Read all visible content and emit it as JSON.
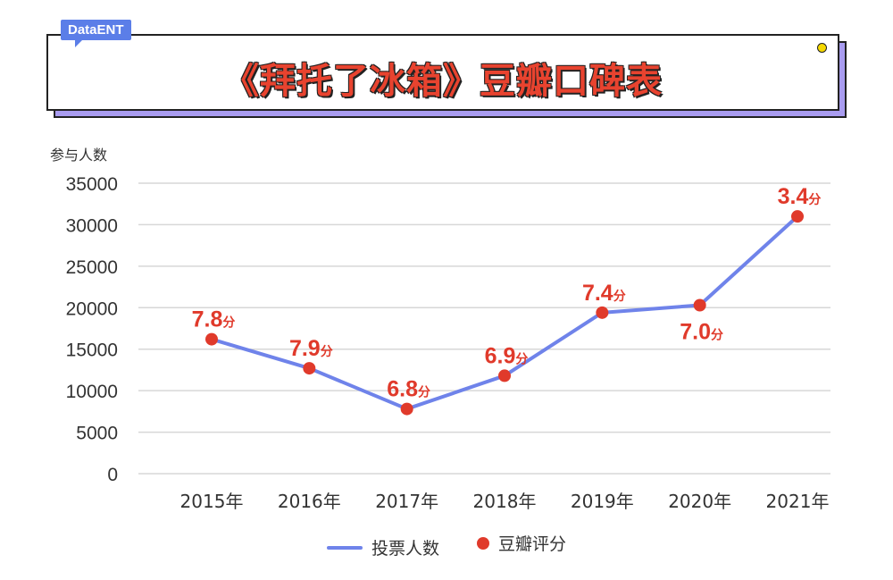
{
  "brand": "DataENT",
  "title": "《拜托了冰箱》豆瓣口碑表",
  "colors": {
    "line": "#6f83ea",
    "point": "#e03a2b",
    "label": "#e03a2b",
    "accent": "#a99cf0",
    "brand": "#5b7ee8"
  },
  "chart_data": {
    "type": "line",
    "title": "《拜托了冰箱》豆瓣口碑表",
    "ylabel": "参与人数",
    "ylim": [
      0,
      35000
    ],
    "yticks": [
      0,
      5000,
      10000,
      15000,
      20000,
      25000,
      30000,
      35000
    ],
    "categories": [
      "2015年",
      "2016年",
      "2017年",
      "2018年",
      "2019年",
      "2020年",
      "2021年"
    ],
    "series": [
      {
        "name": "投票人数",
        "values": [
          16200,
          12700,
          7800,
          11800,
          19400,
          20300,
          31000
        ]
      }
    ],
    "points": {
      "name": "豆瓣评分",
      "labels": [
        "7.8分",
        "7.9分",
        "6.8分",
        "6.9分",
        "7.4分",
        "7.0分",
        "3.4分"
      ]
    },
    "grid": true,
    "legend_position": "bottom"
  }
}
